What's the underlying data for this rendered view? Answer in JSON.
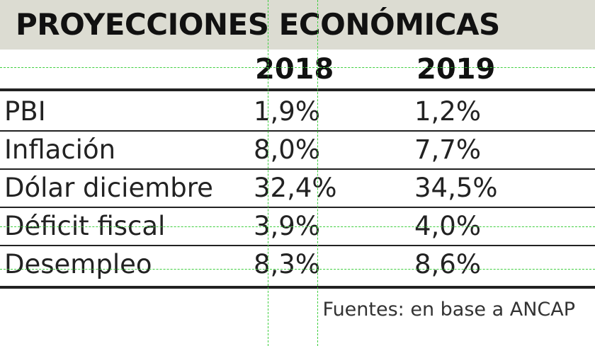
{
  "chart_data": {
    "type": "table",
    "title": "PROYECCIONES ECONÓMICAS",
    "columns": [
      "2018",
      "2019"
    ],
    "rows": [
      {
        "label": "PBI",
        "values": [
          "1,9%",
          "1,2%"
        ]
      },
      {
        "label": "Inflación",
        "values": [
          "8,0%",
          "7,7%"
        ]
      },
      {
        "label": "Dólar diciembre",
        "values": [
          "32,4%",
          "34,5%"
        ]
      },
      {
        "label": "Déficit fiscal",
        "values": [
          "3,9%",
          "4,0%"
        ]
      },
      {
        "label": "Desempleo",
        "values": [
          "8,3%",
          "8,6%"
        ]
      }
    ],
    "source": "Fuentes: en base a ANCAP"
  },
  "colors": {
    "title_band": "#dcdcd2",
    "rule": "#222222",
    "guides": "#3fcf3f"
  }
}
